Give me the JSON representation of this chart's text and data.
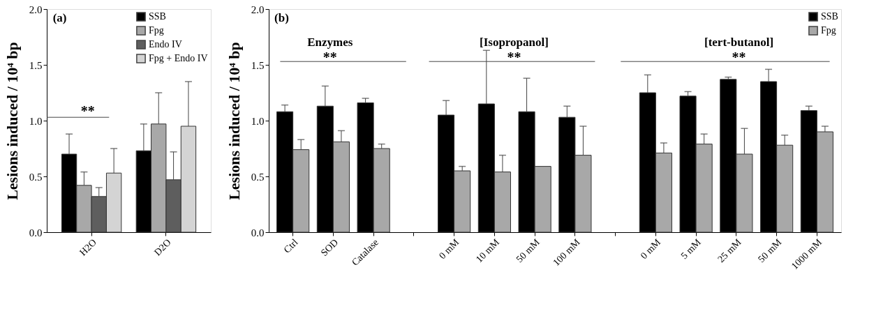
{
  "chart_data": [
    {
      "type": "bar",
      "ylabel": "Lesions induced / 10⁴ bp",
      "categories": [
        "H2O",
        "D2O"
      ],
      "ylim": [
        0,
        2
      ],
      "yticks": [
        {
          "value": 0,
          "label": "0.0"
        },
        {
          "value": 0.5,
          "label": "0.5"
        },
        {
          "value": 1,
          "label": "1.0"
        },
        {
          "value": 1.5,
          "label": "1.5"
        },
        {
          "value": 2,
          "label": "2.0"
        }
      ],
      "legend": "top right",
      "grid": false,
      "series": [
        {
          "name": "SSB",
          "color": "#000000",
          "values": [
            0.7,
            0.73
          ],
          "errors": [
            [
              0.7,
              0.88
            ],
            [
              0.73,
              0.97
            ]
          ]
        },
        {
          "name": "Fpg",
          "color": "#a8a8a8",
          "values": [
            0.42,
            0.97
          ],
          "errors": [
            [
              0.42,
              0.54
            ],
            [
              0.97,
              1.25
            ]
          ]
        },
        {
          "name": "Endo IV",
          "color": "#5e5e5e",
          "values": [
            0.32,
            0.47
          ],
          "errors": [
            [
              0.32,
              0.4
            ],
            [
              0.47,
              0.72
            ]
          ]
        },
        {
          "name": "Fpg + Endo IV",
          "color": "#d4d4d4",
          "values": [
            0.53,
            0.95
          ],
          "errors": [
            [
              0.53,
              0.75
            ],
            [
              0.95,
              1.35
            ]
          ]
        }
      ],
      "annotations": [
        "(a)",
        "**"
      ]
    },
    {
      "type": "bar",
      "ylabel": "Lesions induced / 10⁴ bp",
      "categories": [
        "Ctrl",
        "SOD",
        "Catalase",
        null,
        "0 mM",
        "10 mM",
        "50 mM",
        "100 mM",
        null,
        "0 mM",
        "5 mM",
        "25 mM",
        "50 mM",
        "1000 mM"
      ],
      "ylim": [
        0,
        2
      ],
      "yticks": [
        {
          "value": 0,
          "label": "0.0"
        },
        {
          "value": 0.5,
          "label": "0.5"
        },
        {
          "value": 1,
          "label": "1.0"
        },
        {
          "value": 1.5,
          "label": "1.5"
        },
        {
          "value": 2,
          "label": "2.0"
        }
      ],
      "legend": "top right",
      "grid": false,
      "series": [
        {
          "name": "SSB",
          "color": "#000000",
          "values": [
            1.08,
            1.13,
            1.16,
            null,
            1.05,
            1.15,
            1.08,
            1.03,
            null,
            1.25,
            1.22,
            1.37,
            1.35,
            1.09
          ],
          "errors": [
            [
              1.08,
              1.14
            ],
            [
              1.13,
              1.31
            ],
            [
              1.16,
              1.2
            ],
            null,
            [
              1.05,
              1.18
            ],
            [
              1.15,
              1.63
            ],
            [
              1.08,
              1.38
            ],
            [
              1.03,
              1.13
            ],
            null,
            [
              1.25,
              1.41
            ],
            [
              1.22,
              1.26
            ],
            [
              1.37,
              1.39
            ],
            [
              1.35,
              1.46
            ],
            [
              1.09,
              1.13
            ]
          ]
        },
        {
          "name": "Fpg",
          "color": "#a8a8a8",
          "values": [
            0.74,
            0.81,
            0.75,
            null,
            0.55,
            0.54,
            0.59,
            0.69,
            null,
            0.71,
            0.79,
            0.7,
            0.78,
            0.9
          ],
          "errors": [
            [
              0.74,
              0.83
            ],
            [
              0.81,
              0.91
            ],
            [
              0.75,
              0.79
            ],
            null,
            [
              0.55,
              0.59
            ],
            [
              0.54,
              0.69
            ],
            null,
            [
              0.69,
              0.95
            ],
            null,
            [
              0.71,
              0.8
            ],
            [
              0.79,
              0.88
            ],
            [
              0.7,
              0.93
            ],
            [
              0.78,
              0.87
            ],
            [
              0.9,
              0.95
            ]
          ]
        }
      ],
      "annotations": [
        "(b)",
        "Enzymes",
        "**",
        "[Isopropanol]",
        "**",
        "[tert-butanol]",
        "**"
      ]
    }
  ]
}
